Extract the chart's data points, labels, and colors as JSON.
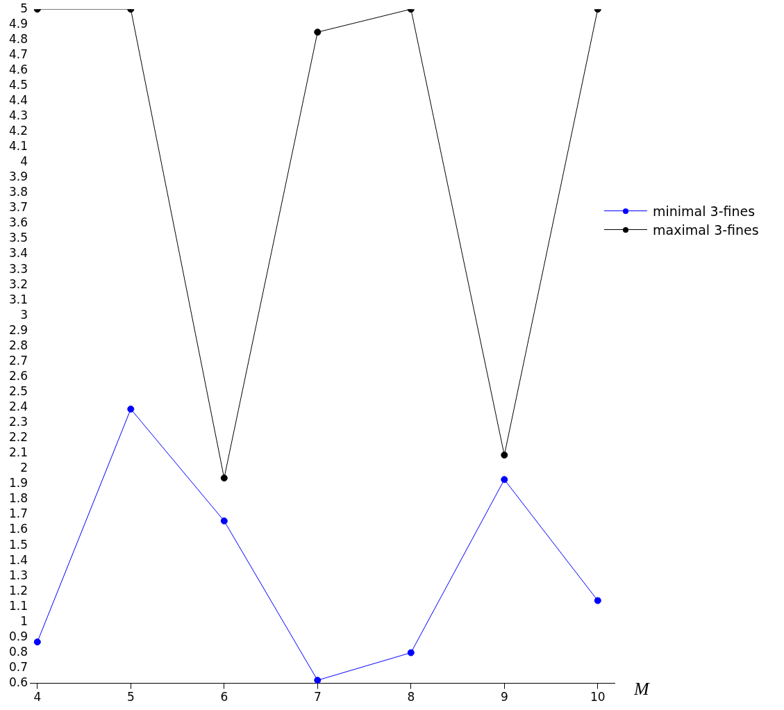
{
  "chart_data": {
    "type": "line",
    "xlabel": "M",
    "x": [
      4,
      5,
      6,
      7,
      8,
      9,
      10
    ],
    "series": [
      {
        "name": "minimal 3-fines",
        "color": "#0000ff",
        "values": [
          0.87,
          2.39,
          1.66,
          0.62,
          0.8,
          1.93,
          1.14
        ]
      },
      {
        "name": "maximal 3-fines",
        "color": "#000000",
        "values": [
          5,
          5,
          1.94,
          4.85,
          5,
          2.09,
          5
        ]
      }
    ],
    "xlim": [
      3.92,
      10.18
    ],
    "xticks": [
      4,
      5,
      6,
      7,
      8,
      9,
      10
    ],
    "ylim": [
      0.6,
      5
    ],
    "yticks": [
      0.6,
      0.7,
      0.8,
      0.9,
      1,
      1.1,
      1.2,
      1.3,
      1.4,
      1.5,
      1.6,
      1.7,
      1.8,
      1.9,
      2,
      2.1,
      2.2,
      2.3,
      2.4,
      2.5,
      2.6,
      2.7,
      2.8,
      2.9,
      3,
      3.1,
      3.2,
      3.3,
      3.4,
      3.5,
      3.6,
      3.7,
      3.8,
      3.9,
      4,
      4.1,
      4.2,
      4.3,
      4.4,
      4.5,
      4.6,
      4.7,
      4.8,
      4.9,
      5
    ],
    "grid": false,
    "legend": "right",
    "marker": "circle",
    "line_style": "solid"
  }
}
